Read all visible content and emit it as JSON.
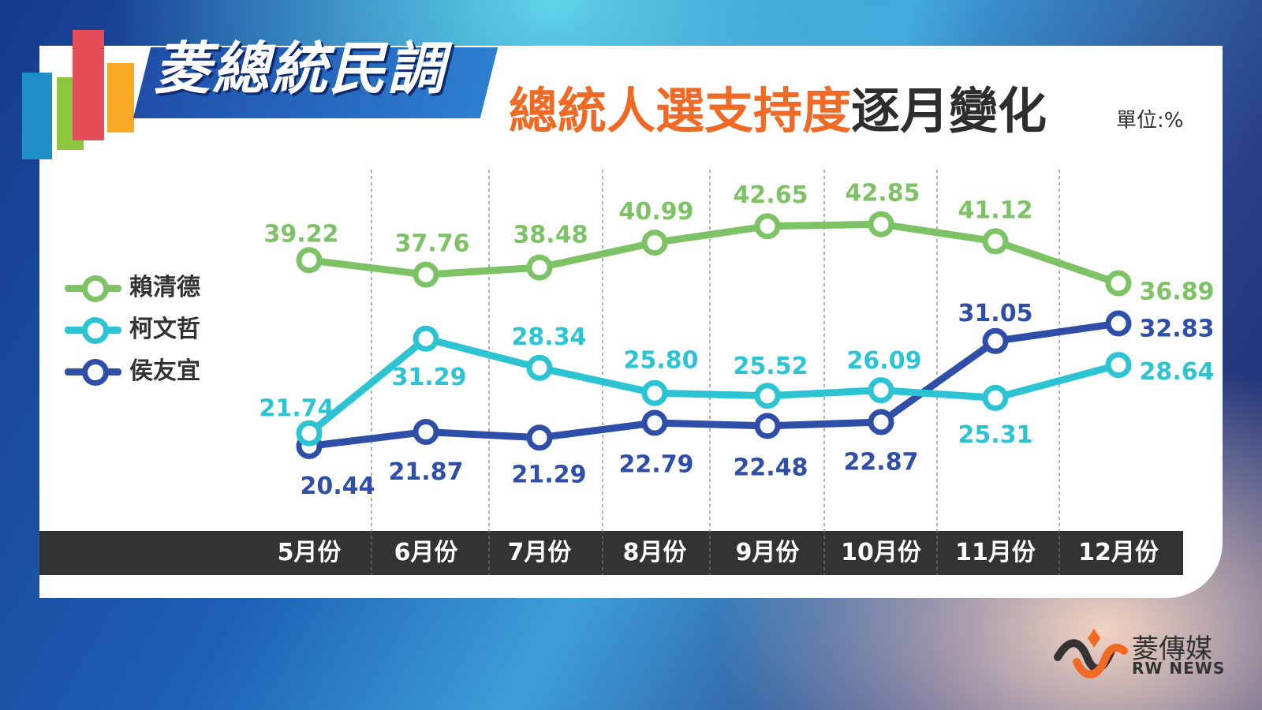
{
  "header": {
    "brand": "菱總統民調",
    "title_highlight": "總統人選支持度",
    "title_rest": "逐月變化",
    "unit": "單位:%"
  },
  "footer": {
    "logo_name": "菱傳媒",
    "logo_en": "RW NEWS"
  },
  "colors": {
    "lai": "#7dc265",
    "ko": "#2cc4d2",
    "hou": "#2f4ea8",
    "accent": "#f06a26",
    "axis_bar": "#333333"
  },
  "chart_data": {
    "type": "line",
    "categories": [
      "5月份",
      "6月份",
      "7月份",
      "8月份",
      "9月份",
      "10月份",
      "11月份",
      "12月份"
    ],
    "series": [
      {
        "name": "賴清德",
        "values": [
          39.22,
          37.76,
          38.48,
          40.99,
          42.65,
          42.85,
          41.12,
          36.89
        ]
      },
      {
        "name": "柯文哲",
        "values": [
          21.74,
          31.29,
          28.34,
          25.8,
          25.52,
          26.09,
          25.31,
          28.64
        ]
      },
      {
        "name": "侯友宜",
        "values": [
          20.44,
          21.87,
          21.29,
          22.79,
          22.48,
          22.87,
          31.05,
          32.83
        ]
      }
    ],
    "data_labels": [
      [
        "39.22",
        "37.76",
        "38.48",
        "40.99",
        "42.65",
        "42.85",
        "41.12",
        "36.89"
      ],
      [
        "21.74",
        "31.29",
        "28.34",
        "25.80",
        "25.52",
        "26.09",
        "25.31",
        "28.64"
      ],
      [
        "20.44",
        "21.87",
        "21.29",
        "22.79",
        "22.48",
        "22.87",
        "31.05",
        "32.83"
      ]
    ],
    "legend_position": "left",
    "grid": "vertical dashed separators"
  }
}
